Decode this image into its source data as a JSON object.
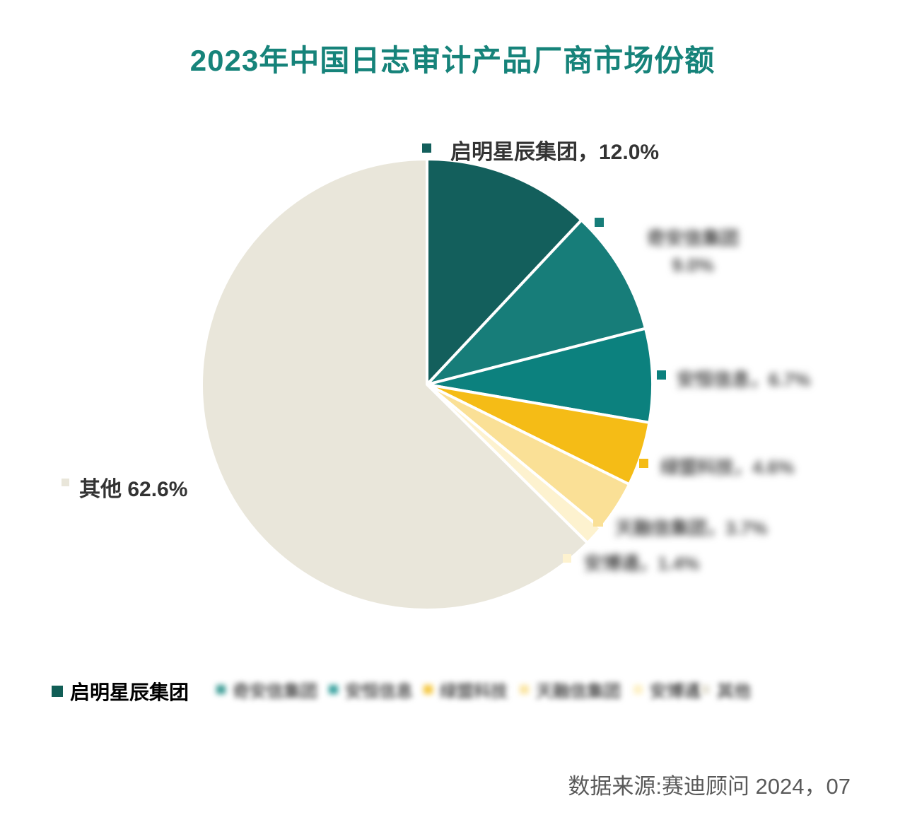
{
  "title": "2023年中国日志审计产品厂商市场份额",
  "source_note": "数据来源:赛迪顾问 2024，07",
  "colors": {
    "title": "#16837a",
    "label_text": "#333333",
    "blurred_text": "#4f4f4f",
    "source_text": "#595959"
  },
  "chart_data": {
    "type": "pie",
    "title": "2023年中国日志审计产品厂商市场份额",
    "unit": "percent",
    "start_angle": "12-oclock-clockwise",
    "center": [
      604,
      544
    ],
    "radius": 319,
    "series": [
      {
        "name": "启明星辰集团",
        "value": 12.0,
        "color": "#135f5c",
        "blurred": false,
        "label": "启明星辰集团，12.0%"
      },
      {
        "name": "奇安信集团",
        "value": 9.0,
        "color": "#177d79",
        "blurred": true,
        "label_line1": "奇安信集团",
        "label_line2": "9.0%"
      },
      {
        "name": "安恒信息",
        "value": 6.7,
        "color": "#0c817e",
        "blurred": true,
        "label": "安恒信息，6.7%"
      },
      {
        "name": "绿盟科技",
        "value": 4.6,
        "color": "#f5bc16",
        "blurred": true,
        "label": "绿盟科技，4.6%"
      },
      {
        "name": "天融信集团",
        "value": 3.7,
        "color": "#fae096",
        "blurred": true,
        "label": "天融信集团，3.7%"
      },
      {
        "name": "安博通",
        "value": 1.4,
        "color": "#fdf2cf",
        "blurred": true,
        "label": "安博通，1.4%"
      },
      {
        "name": "其他",
        "value": 62.6,
        "color": "#e9e6da",
        "blurred": false,
        "label": "其他 62.6%"
      }
    ],
    "legend_position": "bottom"
  },
  "legend": {
    "items": [
      {
        "label": "启明星辰集团",
        "color": "#115e56",
        "blurred": false
      },
      {
        "label": "奇安信集团",
        "color": "#3a9b94",
        "blurred": true
      },
      {
        "label": "安恒信息",
        "color": "#35a09d",
        "blurred": true
      },
      {
        "label": "绿盟科技",
        "color": "#f4c63d",
        "blurred": true
      },
      {
        "label": "天融信集团",
        "color": "#fae4a0",
        "blurred": true
      },
      {
        "label": "安博通",
        "color": "#fdf0c4",
        "blurred": true
      },
      {
        "label": "其他",
        "color": "#e7e4d8",
        "blurred": true
      }
    ]
  }
}
